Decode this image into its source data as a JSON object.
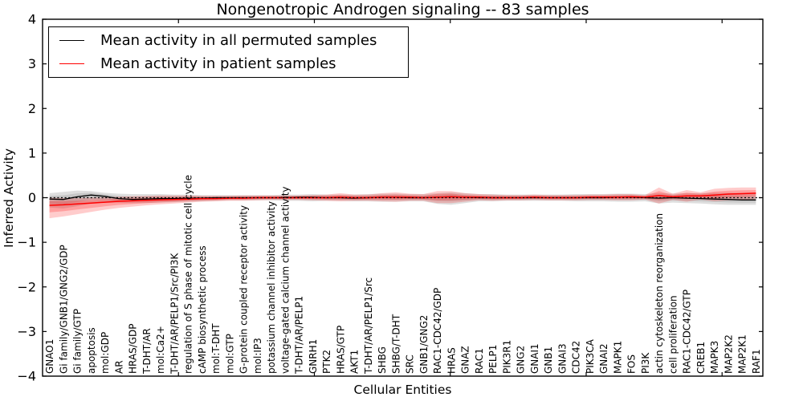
{
  "chart_data": {
    "type": "line",
    "title": "Nongenotropic Androgen signaling -- 83 samples",
    "xlabel": "Cellular Entities",
    "ylabel": "Inferred Activity",
    "ylim": [
      -4,
      4
    ],
    "ytick_values": [
      4,
      3,
      2,
      1,
      0,
      -1,
      -2,
      -3,
      -4
    ],
    "ytick_labels": [
      "4",
      "3",
      "2",
      "1",
      "0",
      "−1",
      "−2",
      "−3",
      "−4"
    ],
    "xtick_top_values": [
      10,
      20,
      30,
      40,
      50
    ],
    "zero_reference_line": 0,
    "grid": false,
    "legend_position": "upper left",
    "categories": [
      "GNAO1",
      "Gi family/GNB1/GNG2/GDP",
      "Gi family/GTP",
      "apoptosis",
      "mol:GDP",
      "AR",
      "HRAS/GDP",
      "T-DHT/AR",
      "mol:Ca2+",
      "T-DHT/AR/PELP1/Src/PI3K",
      "regulation of S phase of mitotic cell cycle",
      "cAMP biosynthetic process",
      "mol:T-DHT",
      "mol:GTP",
      "G-protein coupled receptor activity",
      "mol:IP3",
      "potassium channel inhibitor activity",
      "voltage-gated calcium channel activity",
      "T-DHT/AR/PELP1",
      "GNRH1",
      "PTK2",
      "HRAS/GTP",
      "AKT1",
      "T-DHT/AR/PELP1/Src",
      "SHBG",
      "SHBG/T-DHT",
      "SRC",
      "GNB1/GNG2",
      "RAC1-CDC42/GDP",
      "HRAS",
      "GNAZ",
      "RAC1",
      "PELP1",
      "PIK3R1",
      "GNG2",
      "GNAI1",
      "GNB1",
      "GNAI3",
      "CDC42",
      "PIK3CA",
      "GNAI2",
      "MAPK1",
      "FOS",
      "PI3K",
      "actin cytoskeleton reorganization",
      "cell proliferation",
      "RAC1-CDC42/GTP",
      "CREB1",
      "MAPK3",
      "MAP2K2",
      "MAP2K1",
      "RAF1"
    ],
    "series": [
      {
        "name": "Mean activity in all permuted samples",
        "color": "#000000",
        "band_fill": "rgba(0,0,0,0.13)",
        "band_fill_inner": "rgba(0,0,0,0.10)",
        "mean": [
          -0.03,
          -0.04,
          0.02,
          0.06,
          0.03,
          -0.02,
          -0.04,
          -0.03,
          -0.02,
          -0.02,
          -0.01,
          -0.01,
          0,
          0,
          0,
          0,
          0,
          0,
          0.01,
          0.01,
          0,
          0,
          -0.01,
          0,
          0.01,
          0.01,
          0,
          0,
          0.01,
          0.02,
          0.01,
          0,
          0,
          0,
          0,
          0,
          0,
          0,
          0,
          0,
          0,
          0.01,
          0.01,
          0,
          -0.01,
          0,
          -0.01,
          -0.02,
          -0.03,
          -0.04,
          -0.05,
          -0.05
        ],
        "upper": [
          0.1,
          0.13,
          0.16,
          0.15,
          0.11,
          0.09,
          0.08,
          0.08,
          0.08,
          0.07,
          0.07,
          0.06,
          0.06,
          0.06,
          0.06,
          0.06,
          0.06,
          0.07,
          0.07,
          0.08,
          0.07,
          0.07,
          0.07,
          0.08,
          0.09,
          0.09,
          0.08,
          0.08,
          0.1,
          0.12,
          0.1,
          0.08,
          0.08,
          0.07,
          0.07,
          0.07,
          0.07,
          0.07,
          0.08,
          0.08,
          0.08,
          0.09,
          0.09,
          0.08,
          0.1,
          0.09,
          0.1,
          0.1,
          0.11,
          0.11,
          0.1,
          0.1
        ],
        "lower": [
          -0.22,
          -0.24,
          -0.19,
          -0.13,
          -0.11,
          -0.11,
          -0.12,
          -0.12,
          -0.11,
          -0.1,
          -0.09,
          -0.08,
          -0.07,
          -0.06,
          -0.06,
          -0.06,
          -0.06,
          -0.07,
          -0.07,
          -0.08,
          -0.07,
          -0.07,
          -0.08,
          -0.08,
          -0.09,
          -0.09,
          -0.08,
          -0.08,
          -0.14,
          -0.16,
          -0.12,
          -0.08,
          -0.08,
          -0.07,
          -0.07,
          -0.07,
          -0.07,
          -0.07,
          -0.08,
          -0.08,
          -0.08,
          -0.09,
          -0.09,
          -0.08,
          -0.13,
          -0.11,
          -0.12,
          -0.13,
          -0.15,
          -0.16,
          -0.16,
          -0.16
        ]
      },
      {
        "name": "Mean activity in patient samples",
        "color": "#ff0000",
        "band_fill": "rgba(255,0,0,0.20)",
        "band_fill_inner": "rgba(255,0,0,0.22)",
        "mean": [
          -0.17,
          -0.16,
          -0.14,
          -0.12,
          -0.1,
          -0.08,
          -0.07,
          -0.06,
          -0.05,
          -0.04,
          -0.03,
          -0.02,
          -0.02,
          -0.01,
          -0.01,
          0,
          0,
          0,
          0,
          0,
          0,
          0.01,
          0,
          0,
          0.01,
          0.01,
          0.01,
          0,
          0.01,
          0.02,
          0.01,
          0.01,
          0,
          0,
          0,
          0.01,
          0,
          0,
          0,
          0.01,
          0.01,
          0.01,
          0.02,
          0.01,
          0.05,
          0.02,
          0.04,
          0.04,
          0.06,
          0.08,
          0.09,
          0.1
        ],
        "upper": [
          0.0,
          -0.01,
          -0.01,
          0.0,
          0.01,
          0.02,
          0.03,
          0.04,
          0.05,
          0.05,
          0.05,
          0.04,
          0.04,
          0.04,
          0.05,
          0.05,
          0.05,
          0.05,
          0.05,
          0.06,
          0.07,
          0.1,
          0.07,
          0.07,
          0.1,
          0.12,
          0.09,
          0.08,
          0.15,
          0.15,
          0.1,
          0.08,
          0.07,
          0.06,
          0.06,
          0.07,
          0.06,
          0.06,
          0.06,
          0.07,
          0.07,
          0.08,
          0.08,
          0.06,
          0.23,
          0.09,
          0.17,
          0.12,
          0.2,
          0.22,
          0.23,
          0.23
        ],
        "lower": [
          -0.46,
          -0.42,
          -0.37,
          -0.32,
          -0.27,
          -0.23,
          -0.2,
          -0.17,
          -0.15,
          -0.13,
          -0.11,
          -0.09,
          -0.08,
          -0.07,
          -0.07,
          -0.06,
          -0.05,
          -0.05,
          -0.05,
          -0.06,
          -0.07,
          -0.08,
          -0.07,
          -0.07,
          -0.08,
          -0.09,
          -0.07,
          -0.07,
          -0.12,
          -0.12,
          -0.09,
          -0.06,
          -0.07,
          -0.06,
          -0.06,
          -0.05,
          -0.06,
          -0.06,
          -0.06,
          -0.05,
          -0.05,
          -0.06,
          -0.06,
          -0.04,
          -0.13,
          -0.05,
          -0.09,
          -0.04,
          -0.08,
          -0.06,
          -0.05,
          -0.03
        ]
      }
    ]
  }
}
